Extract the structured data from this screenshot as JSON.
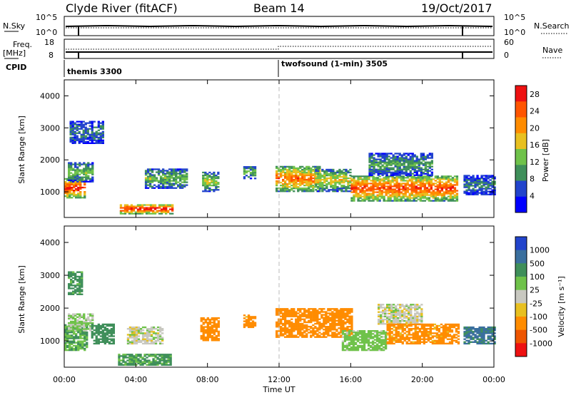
{
  "header": {
    "station": "Clyde River (fitACF)",
    "beam": "Beam 14",
    "date": "19/Oct/2017"
  },
  "top_panels": {
    "nsky_label": "N.Sky",
    "nsky_ticks": [
      "10^5",
      "10^0"
    ],
    "nsearch_label": "N.Search",
    "nsearch_ticks": [
      "10^5",
      "10^0"
    ],
    "freq_label": "Freq.",
    "freq_unit": "[MHz]",
    "freq_ticks": [
      "18",
      "8"
    ],
    "nave_label": "Nave",
    "nave_ticks": [
      "60",
      "0"
    ],
    "cpid_label": "CPID",
    "cpid_segments": [
      "themis 3300",
      "twofsound (1-min) 3505"
    ]
  },
  "colors": {
    "power_scale": [
      "#0000ff",
      "#2244cc",
      "#3f8f5a",
      "#6fc24a",
      "#e8c020",
      "#ff8c00",
      "#ff5500",
      "#ee1111"
    ],
    "velocity_scale": [
      "#2244cc",
      "#3a6f9e",
      "#3f8f5a",
      "#6fc24a",
      "#c8c8c0",
      "#e8c020",
      "#ff8c00",
      "#ee5500",
      "#ee1111"
    ]
  },
  "chart_data": [
    {
      "type": "heatmap",
      "name": "power",
      "ylabel": "Slant Range [km]",
      "yticks": [
        "1000",
        "2000",
        "3000",
        "4000"
      ],
      "ylim": [
        200,
        4500
      ],
      "colorbar_label": "Power [dB]",
      "colorbar_ticks": [
        "4",
        "8",
        "12",
        "16",
        "20",
        "24",
        "28"
      ],
      "colorbar_range": [
        0,
        30
      ],
      "blobs": [
        {
          "t": [
            0.0,
            1.2
          ],
          "r": [
            800,
            1400
          ],
          "v": 26
        },
        {
          "t": [
            0.2,
            1.6
          ],
          "r": [
            1300,
            1900
          ],
          "v": 12
        },
        {
          "t": [
            0.3,
            2.2
          ],
          "r": [
            2500,
            3200
          ],
          "v": 8
        },
        {
          "t": [
            3.1,
            6.0
          ],
          "r": [
            300,
            600
          ],
          "v": 27
        },
        {
          "t": [
            4.5,
            6.8
          ],
          "r": [
            1100,
            1700
          ],
          "v": 12
        },
        {
          "t": [
            7.7,
            8.6
          ],
          "r": [
            1000,
            1600
          ],
          "v": 14
        },
        {
          "t": [
            10.0,
            10.6
          ],
          "r": [
            1400,
            1800
          ],
          "v": 12
        },
        {
          "t": [
            11.8,
            14.2
          ],
          "r": [
            1000,
            1800
          ],
          "v": 22
        },
        {
          "t": [
            14.0,
            16.0
          ],
          "r": [
            1000,
            1700
          ],
          "v": 16
        },
        {
          "t": [
            16.0,
            22.0
          ],
          "r": [
            700,
            1500
          ],
          "v": 24
        },
        {
          "t": [
            17.0,
            20.5
          ],
          "r": [
            1500,
            2200
          ],
          "v": 10
        },
        {
          "t": [
            22.3,
            24.0
          ],
          "r": [
            900,
            1500
          ],
          "v": 8
        }
      ]
    },
    {
      "type": "heatmap",
      "name": "velocity",
      "ylabel": "Slant Range [km]",
      "yticks": [
        "1000",
        "2000",
        "3000",
        "4000"
      ],
      "ylim": [
        200,
        4500
      ],
      "colorbar_label": "Velocity [m s⁻¹]",
      "colorbar_ticks": [
        "1000",
        "500",
        "100",
        "25",
        "-25",
        "-100",
        "-500",
        "-1000"
      ],
      "blobs": [
        {
          "t": [
            0.0,
            1.3
          ],
          "r": [
            700,
            1500
          ],
          "v": 100
        },
        {
          "t": [
            0.2,
            1.6
          ],
          "r": [
            1300,
            1800
          ],
          "v": 30
        },
        {
          "t": [
            0.2,
            1.0
          ],
          "r": [
            2400,
            3100
          ],
          "v": 150
        },
        {
          "t": [
            1.5,
            2.8
          ],
          "r": [
            900,
            1500
          ],
          "v": 200
        },
        {
          "t": [
            3.0,
            6.0
          ],
          "r": [
            250,
            600
          ],
          "v": 120
        },
        {
          "t": [
            3.5,
            5.5
          ],
          "r": [
            900,
            1400
          ],
          "v": 0
        },
        {
          "t": [
            7.6,
            8.6
          ],
          "r": [
            1000,
            1700
          ],
          "v": -200
        },
        {
          "t": [
            10.0,
            10.6
          ],
          "r": [
            1400,
            1800
          ],
          "v": -150
        },
        {
          "t": [
            11.8,
            16.0
          ],
          "r": [
            1100,
            2000
          ],
          "v": -300
        },
        {
          "t": [
            15.5,
            18.0
          ],
          "r": [
            700,
            1300
          ],
          "v": 60
        },
        {
          "t": [
            17.5,
            20.0
          ],
          "r": [
            1500,
            2100
          ],
          "v": 0
        },
        {
          "t": [
            18.0,
            22.0
          ],
          "r": [
            900,
            1500
          ],
          "v": -150
        },
        {
          "t": [
            22.3,
            24.0
          ],
          "r": [
            900,
            1400
          ],
          "v": 600
        }
      ]
    }
  ],
  "xaxis": {
    "ticks": [
      "00:00",
      "04:00",
      "08:00",
      "12:00",
      "16:00",
      "20:00",
      "00:00"
    ],
    "label": "Time UT"
  }
}
